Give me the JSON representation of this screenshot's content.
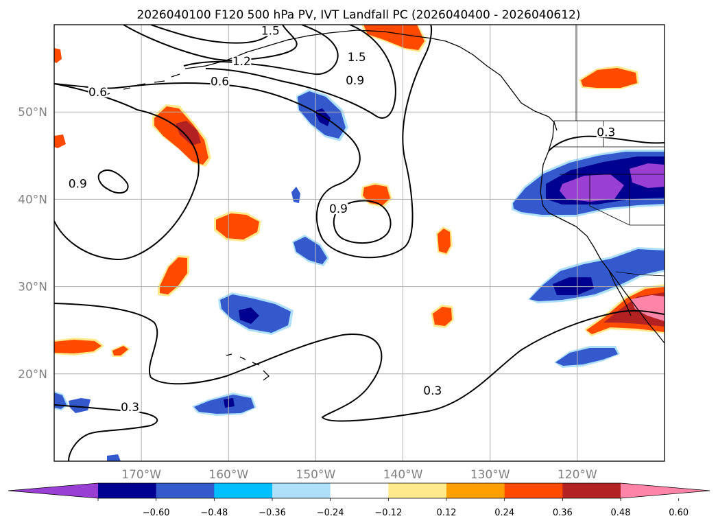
{
  "title": "2026040100 F120 500 hPa PV, IVT Landfall PC (2026040400 - 2026040612)",
  "map": {
    "projection": "plate-carree",
    "lon_range": [
      -180,
      -110
    ],
    "lat_range": [
      10,
      60
    ],
    "lon_ticks": [
      {
        "lon": -170,
        "label": "170°W"
      },
      {
        "lon": -160,
        "label": "160°W"
      },
      {
        "lon": -150,
        "label": "150°W"
      },
      {
        "lon": -140,
        "label": "140°W"
      },
      {
        "lon": -130,
        "label": "130°W"
      },
      {
        "lon": -120,
        "label": "120°W"
      }
    ],
    "lat_ticks": [
      {
        "lat": 20,
        "label": "20°N"
      },
      {
        "lat": 30,
        "label": "30°N"
      },
      {
        "lat": 40,
        "label": "40°N"
      },
      {
        "lat": 50,
        "label": "50°N"
      }
    ],
    "gridlines": true
  },
  "contour_labels": [
    {
      "text": "0.6",
      "lon": -175,
      "lat": 52
    },
    {
      "text": "0.6",
      "lon": -161,
      "lat": 53.2
    },
    {
      "text": "0.9",
      "lon": -145.5,
      "lat": 53.3
    },
    {
      "text": "1.2",
      "lon": -158.5,
      "lat": 55.5
    },
    {
      "text": "1.5",
      "lon": -145.3,
      "lat": 56
    },
    {
      "text": "1.5",
      "lon": -155.2,
      "lat": 59
    },
    {
      "text": "0.9",
      "lon": -177.3,
      "lat": 41.5
    },
    {
      "text": "0.9",
      "lon": -147.4,
      "lat": 38.6
    },
    {
      "text": "0.3",
      "lon": -116.7,
      "lat": 47.4
    },
    {
      "text": "0.3",
      "lon": -171.3,
      "lat": 15.9
    },
    {
      "text": "0.3",
      "lon": -136.6,
      "lat": 17.8
    }
  ],
  "colorbar": {
    "colors": [
      "#9a3fd4",
      "#000090",
      "#3359cc",
      "#00bfff",
      "#aee0fa",
      "#ffffff",
      "#ffe98a",
      "#ff9f00",
      "#ff4a00",
      "#b22222",
      "#ff85a8"
    ],
    "extend": "both",
    "ticks": [
      "−0.60",
      "−0.48",
      "−0.36",
      "−0.24",
      "−0.12",
      "0.12",
      "0.24",
      "0.36",
      "0.48",
      "0.60"
    ]
  },
  "chart_data": {
    "type": "map-contour",
    "title": "2026040100 F120 500 hPa PV, IVT Landfall PC (2026040400 - 2026040612)",
    "line_contour_levels": [
      0.3,
      0.6,
      0.9,
      1.2,
      1.5
    ],
    "fill_levels": [
      -0.6,
      -0.48,
      -0.36,
      -0.24,
      -0.12,
      0.12,
      0.24,
      0.36,
      0.48,
      0.6
    ],
    "xlabel": "",
    "ylabel": "",
    "xlim": [
      -180,
      -110
    ],
    "ylim": [
      10,
      60
    ]
  }
}
